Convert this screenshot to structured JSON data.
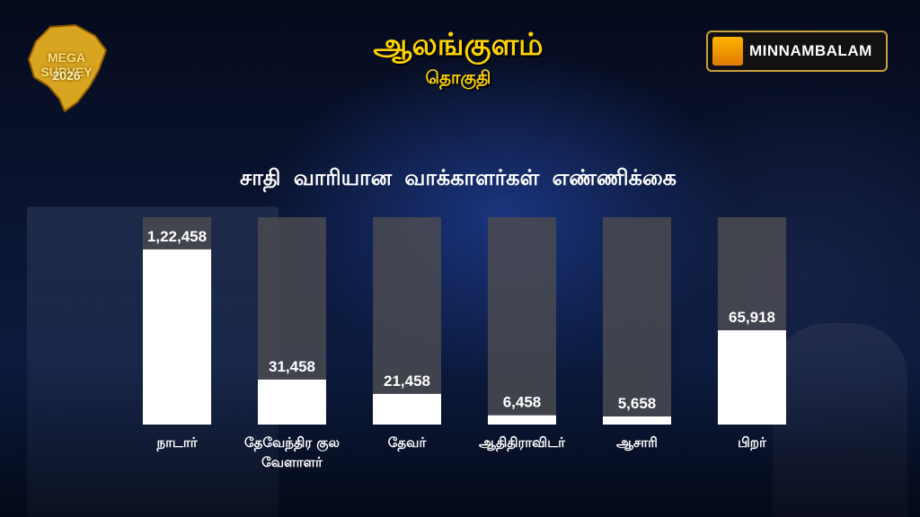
{
  "header": {
    "title": "ஆலங்குளம்",
    "subtitle": "தொகுதி",
    "badge_line1": "MEGA SURVEY",
    "badge_line2": "2026",
    "logo_text": "MINNAMBALAM"
  },
  "colors": {
    "title": "#ffd400",
    "bar_track": "#4a4a50",
    "bar_fill": "#ffffff",
    "text": "#ffffff"
  },
  "chart_data": {
    "type": "bar",
    "title": "சாதி வாரியான வாக்காளர்கள் எண்ணிக்கை",
    "categories": [
      "நாடார்",
      "தேவேந்திர குல வேளாளர்",
      "தேவர்",
      "ஆதிதிராவிடர்",
      "ஆசாரி",
      "பிறர்"
    ],
    "values": [
      122458,
      31458,
      21458,
      6458,
      5658,
      65918
    ],
    "value_labels": [
      "1,22,458",
      "31,458",
      "21,458",
      "6,458",
      "5,658",
      "65,918"
    ],
    "ylim": [
      0,
      145000
    ],
    "grid": false,
    "legend": "none"
  }
}
